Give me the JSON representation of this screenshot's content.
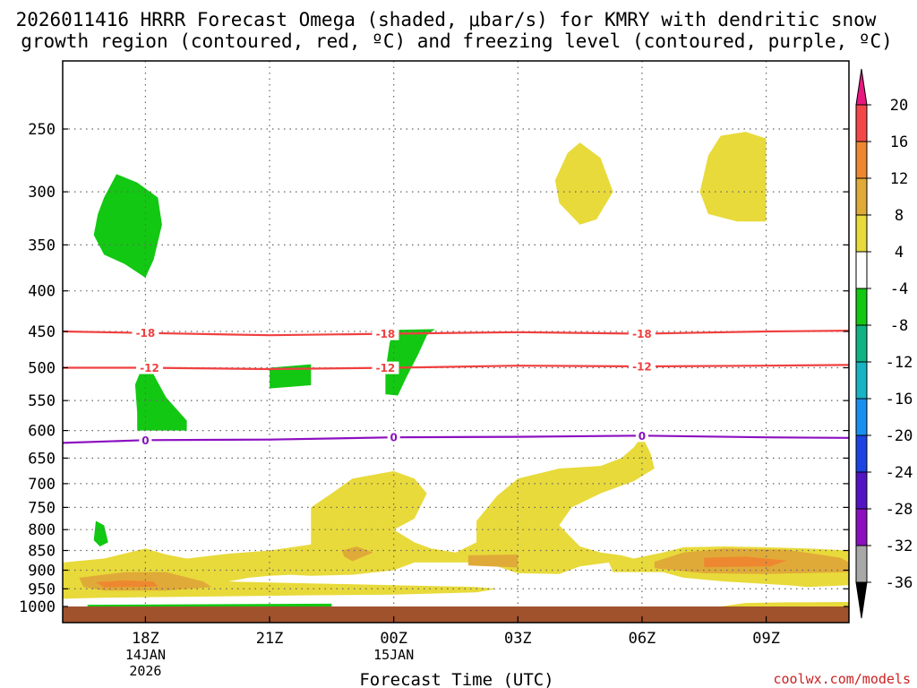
{
  "chart_data": {
    "type": "heatmap",
    "title_lines": [
      "2026011416 HRRR Forecast Omega (shaded, μbar/s) for KMRY with dendritic snow",
      "growth region (contoured, red, ºC) and freezing level (contoured, purple, ºC)"
    ],
    "xlabel": "Forecast Time (UTC)",
    "ylabel": "",
    "credit": "coolwx.com/models",
    "x_hours": [
      16,
      35
    ],
    "x_ticks": [
      {
        "hour": 18,
        "lines": [
          "18Z",
          "14JAN",
          "2026"
        ]
      },
      {
        "hour": 21,
        "lines": [
          "21Z"
        ]
      },
      {
        "hour": 24,
        "lines": [
          "00Z",
          "15JAN"
        ]
      },
      {
        "hour": 27,
        "lines": [
          "03Z"
        ]
      },
      {
        "hour": 30,
        "lines": [
          "06Z"
        ]
      },
      {
        "hour": 33,
        "lines": [
          "09Z"
        ]
      }
    ],
    "y_levels": [
      250,
      300,
      350,
      400,
      450,
      500,
      550,
      600,
      650,
      700,
      750,
      800,
      850,
      900,
      950,
      1000
    ],
    "colorbar": {
      "levels": [
        20,
        16,
        12,
        8,
        4,
        -4,
        -8,
        -12,
        -16,
        -20,
        -24,
        -28,
        -32,
        -36
      ],
      "bands": [
        {
          "range": "16 to 20",
          "color": "#f44848"
        },
        {
          "range": "12 to 16",
          "color": "#ee8830"
        },
        {
          "range": "8 to 12",
          "color": "#e0aa38"
        },
        {
          "range": "4 to 8",
          "color": "#e8da3a"
        },
        {
          "range": "-4 to 4",
          "color": "#ffffff"
        },
        {
          "range": "-8 to -4",
          "color": "#12c812"
        },
        {
          "range": "-12 to -8",
          "color": "#10b484"
        },
        {
          "range": "-16 to -12",
          "color": "#18b4c4"
        },
        {
          "range": "-20 to -16",
          "color": "#1890f0"
        },
        {
          "range": "-24 to -20",
          "color": "#1c44e4"
        },
        {
          "range": "-28 to -24",
          "color": "#5414c4"
        },
        {
          "range": "-32 to -28",
          "color": "#8c10c0"
        },
        {
          "range": "-36 to -32",
          "color": "#a8a8a8"
        }
      ],
      "above_color": "#e81880",
      "below_color": "#000000"
    },
    "ground_color": "#a0522d",
    "contours": [
      {
        "name": "dgz-minus-18",
        "value": -18,
        "color": "#f04040",
        "label": "-18",
        "points": [
          [
            16,
            450
          ],
          [
            18,
            452
          ],
          [
            21,
            455
          ],
          [
            24,
            453
          ],
          [
            27,
            451
          ],
          [
            30,
            453
          ],
          [
            33,
            450
          ],
          [
            35,
            449
          ]
        ],
        "label_hours": [
          18.0,
          23.8,
          30.0
        ]
      },
      {
        "name": "dgz-minus-12",
        "value": -12,
        "color": "#f04040",
        "label": "-12",
        "points": [
          [
            16,
            500
          ],
          [
            18,
            500
          ],
          [
            21,
            502
          ],
          [
            24,
            500
          ],
          [
            27,
            497
          ],
          [
            30,
            498
          ],
          [
            33,
            497
          ],
          [
            35,
            496
          ]
        ],
        "label_hours": [
          18.1,
          23.8,
          30.0
        ]
      },
      {
        "name": "freezing-level",
        "value": 0,
        "color": "#8c10c0",
        "label": "0",
        "points": [
          [
            16,
            622
          ],
          [
            18,
            617
          ],
          [
            21,
            616
          ],
          [
            24,
            612
          ],
          [
            27,
            611
          ],
          [
            30,
            609
          ],
          [
            33,
            612
          ],
          [
            35,
            613
          ]
        ],
        "label_hours": [
          18.0,
          24.0,
          30.0
        ]
      }
    ],
    "regions": [
      {
        "name": "green-300mb-18z",
        "band": "-8 to -4",
        "points": [
          [
            17.0,
            305
          ],
          [
            17.3,
            285
          ],
          [
            17.8,
            292
          ],
          [
            18.3,
            305
          ],
          [
            18.4,
            330
          ],
          [
            18.2,
            365
          ],
          [
            18.0,
            385
          ],
          [
            17.5,
            370
          ],
          [
            17.0,
            360
          ],
          [
            16.75,
            340
          ],
          [
            16.85,
            320
          ]
        ]
      },
      {
        "name": "green-500mb-18z",
        "band": "-8 to -4",
        "points": [
          [
            18.0,
            488
          ],
          [
            18.5,
            545
          ],
          [
            19.0,
            583
          ],
          [
            19.0,
            600
          ],
          [
            17.8,
            600
          ],
          [
            17.8,
            570
          ],
          [
            17.75,
            525
          ]
        ]
      },
      {
        "name": "green-520mb-21z",
        "band": "-8 to -4",
        "points": [
          [
            21.0,
            500
          ],
          [
            22.0,
            495
          ],
          [
            22.0,
            526
          ],
          [
            21.0,
            531
          ]
        ]
      },
      {
        "name": "green-470mb-00z",
        "band": "-8 to -4",
        "points": [
          [
            23.9,
            465
          ],
          [
            24.0,
            448
          ],
          [
            25.0,
            447
          ],
          [
            24.8,
            455
          ],
          [
            24.6,
            480
          ],
          [
            24.3,
            515
          ],
          [
            24.1,
            542
          ],
          [
            23.8,
            540
          ],
          [
            23.8,
            505
          ]
        ]
      },
      {
        "name": "green-820mb-17z",
        "band": "-8 to -4",
        "points": [
          [
            16.8,
            780
          ],
          [
            17.0,
            790
          ],
          [
            17.1,
            830
          ],
          [
            16.9,
            840
          ],
          [
            16.75,
            825
          ]
        ]
      },
      {
        "name": "green-1000mb-strip",
        "band": "-8 to -4",
        "points": [
          [
            16.6,
            995
          ],
          [
            22.5,
            992
          ],
          [
            22.5,
            1000
          ],
          [
            16.6,
            1000
          ]
        ]
      },
      {
        "name": "yellow-300mb-04z",
        "band": "4 to 8",
        "points": [
          [
            28.5,
            260
          ],
          [
            29.0,
            272
          ],
          [
            29.3,
            300
          ],
          [
            28.9,
            325
          ],
          [
            28.5,
            330
          ],
          [
            28.0,
            310
          ],
          [
            27.9,
            290
          ],
          [
            28.2,
            268
          ]
        ]
      },
      {
        "name": "yellow-290mb-08z",
        "band": "4 to 8",
        "points": [
          [
            32.5,
            252
          ],
          [
            33.0,
            257
          ],
          [
            33.0,
            327
          ],
          [
            32.3,
            327
          ],
          [
            31.6,
            320
          ],
          [
            31.4,
            300
          ],
          [
            31.6,
            270
          ],
          [
            31.9,
            255
          ]
        ]
      },
      {
        "name": "yellow-low-main",
        "band": "4 to 8",
        "points": [
          [
            16.0,
            880
          ],
          [
            17.0,
            870
          ],
          [
            18.0,
            845
          ],
          [
            18.5,
            860
          ],
          [
            19.0,
            870
          ],
          [
            20.0,
            858
          ],
          [
            21.0,
            850
          ],
          [
            22.0,
            835
          ],
          [
            22.0,
            750
          ],
          [
            22.5,
            720
          ],
          [
            23.0,
            690
          ],
          [
            24.0,
            675
          ],
          [
            24.5,
            690
          ],
          [
            24.8,
            720
          ],
          [
            24.5,
            775
          ],
          [
            24.0,
            800
          ],
          [
            24.5,
            830
          ],
          [
            24.9,
            845
          ],
          [
            25.5,
            855
          ],
          [
            26.0,
            830
          ],
          [
            26.0,
            780
          ],
          [
            26.5,
            725
          ],
          [
            27.0,
            690
          ],
          [
            28.0,
            670
          ],
          [
            29.0,
            665
          ],
          [
            29.5,
            650
          ],
          [
            29.8,
            630
          ],
          [
            30.0,
            610
          ],
          [
            30.2,
            640
          ],
          [
            30.3,
            670
          ],
          [
            29.8,
            695
          ],
          [
            29.0,
            720
          ],
          [
            28.3,
            750
          ],
          [
            28.0,
            790
          ],
          [
            28.5,
            840
          ],
          [
            29.0,
            855
          ],
          [
            29.5,
            862
          ],
          [
            29.8,
            870
          ],
          [
            30.5,
            855
          ],
          [
            31.0,
            842
          ],
          [
            32.0,
            840
          ],
          [
            33.0,
            842
          ],
          [
            34.0,
            845
          ],
          [
            35.0,
            850
          ],
          [
            35.0,
            940
          ],
          [
            34.0,
            945
          ],
          [
            33.5,
            940
          ],
          [
            32.0,
            930
          ],
          [
            31.0,
            920
          ],
          [
            30.5,
            905
          ],
          [
            29.3,
            905
          ],
          [
            29.2,
            880
          ],
          [
            28.5,
            890
          ],
          [
            28.0,
            910
          ],
          [
            27.0,
            908
          ],
          [
            26.5,
            890
          ],
          [
            26.0,
            880
          ],
          [
            25.0,
            880
          ],
          [
            24.5,
            880
          ],
          [
            24.0,
            900
          ],
          [
            23.0,
            912
          ],
          [
            22.0,
            915
          ],
          [
            21.5,
            912
          ],
          [
            21.0,
            915
          ],
          [
            20.5,
            920
          ],
          [
            20.0,
            930
          ],
          [
            22.0,
            935
          ],
          [
            24.0,
            940
          ],
          [
            26.0,
            945
          ],
          [
            26.5,
            950
          ],
          [
            26.0,
            960
          ],
          [
            24.0,
            966
          ],
          [
            22.0,
            968
          ],
          [
            19.0,
            972
          ],
          [
            17.0,
            975
          ],
          [
            16.0,
            978
          ]
        ]
      },
      {
        "name": "yellow-1000mb-09z",
        "band": "4 to 8",
        "points": [
          [
            31.9,
            1000
          ],
          [
            32.5,
            990
          ],
          [
            33.5,
            988
          ],
          [
            35.0,
            987
          ],
          [
            35.0,
            1000
          ]
        ]
      },
      {
        "name": "gold-930mb-18z",
        "band": "8 to 12",
        "points": [
          [
            16.4,
            920
          ],
          [
            17.5,
            905
          ],
          [
            18.5,
            905
          ],
          [
            19.4,
            930
          ],
          [
            19.6,
            945
          ],
          [
            18.5,
            955
          ],
          [
            17.0,
            955
          ],
          [
            16.5,
            945
          ]
        ]
      },
      {
        "name": "gold-850mb-23z",
        "band": "8 to 12",
        "points": [
          [
            22.75,
            850
          ],
          [
            23.1,
            840
          ],
          [
            23.5,
            855
          ],
          [
            23.0,
            877
          ],
          [
            22.8,
            865
          ]
        ]
      },
      {
        "name": "gold-870mb-02z",
        "band": "8 to 12",
        "points": [
          [
            25.8,
            862
          ],
          [
            27.0,
            860
          ],
          [
            27.0,
            893
          ],
          [
            25.8,
            888
          ]
        ]
      },
      {
        "name": "gold-870mb-08z",
        "band": "8 to 12",
        "points": [
          [
            30.3,
            878
          ],
          [
            31.0,
            855
          ],
          [
            32.0,
            845
          ],
          [
            33.5,
            848
          ],
          [
            34.8,
            868
          ],
          [
            35.0,
            880
          ],
          [
            35.0,
            905
          ],
          [
            33.0,
            910
          ],
          [
            31.5,
            908
          ],
          [
            30.3,
            895
          ]
        ]
      },
      {
        "name": "orange-940mb-18z",
        "band": "12 to 16",
        "points": [
          [
            16.8,
            932
          ],
          [
            17.5,
            927
          ],
          [
            18.2,
            930
          ],
          [
            18.3,
            944
          ],
          [
            17.0,
            946
          ]
        ]
      },
      {
        "name": "orange-880mb-08z",
        "band": "12 to 16",
        "points": [
          [
            31.5,
            868
          ],
          [
            32.5,
            865
          ],
          [
            33.5,
            875
          ],
          [
            33.1,
            890
          ],
          [
            31.5,
            892
          ]
        ]
      }
    ]
  }
}
